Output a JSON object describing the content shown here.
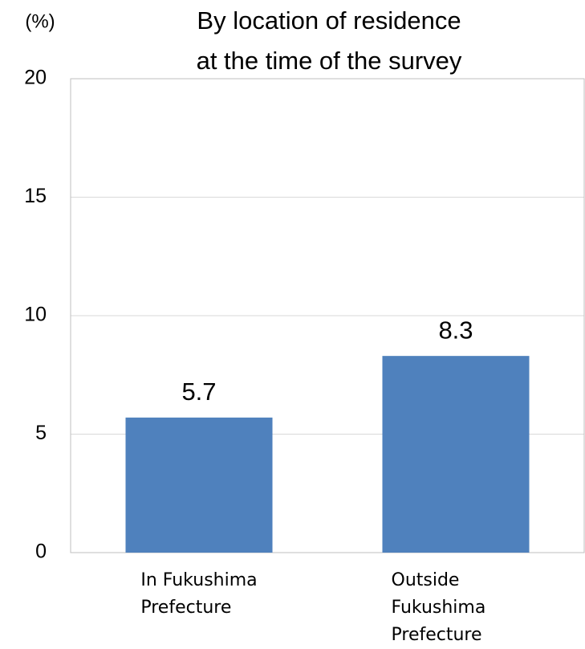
{
  "chart_data": {
    "type": "bar",
    "title": [
      "By location of residence",
      "at the time of the survey"
    ],
    "y_label": "(%)",
    "categories": [
      "In Fukushima\nPrefecture",
      "Outside Fukushima\nPrefecture"
    ],
    "values": [
      5.7,
      8.3
    ],
    "color": "#4f81bd",
    "ylim": [
      0,
      20
    ],
    "yticks": [
      0,
      5,
      10,
      15,
      20
    ],
    "grid": true
  }
}
